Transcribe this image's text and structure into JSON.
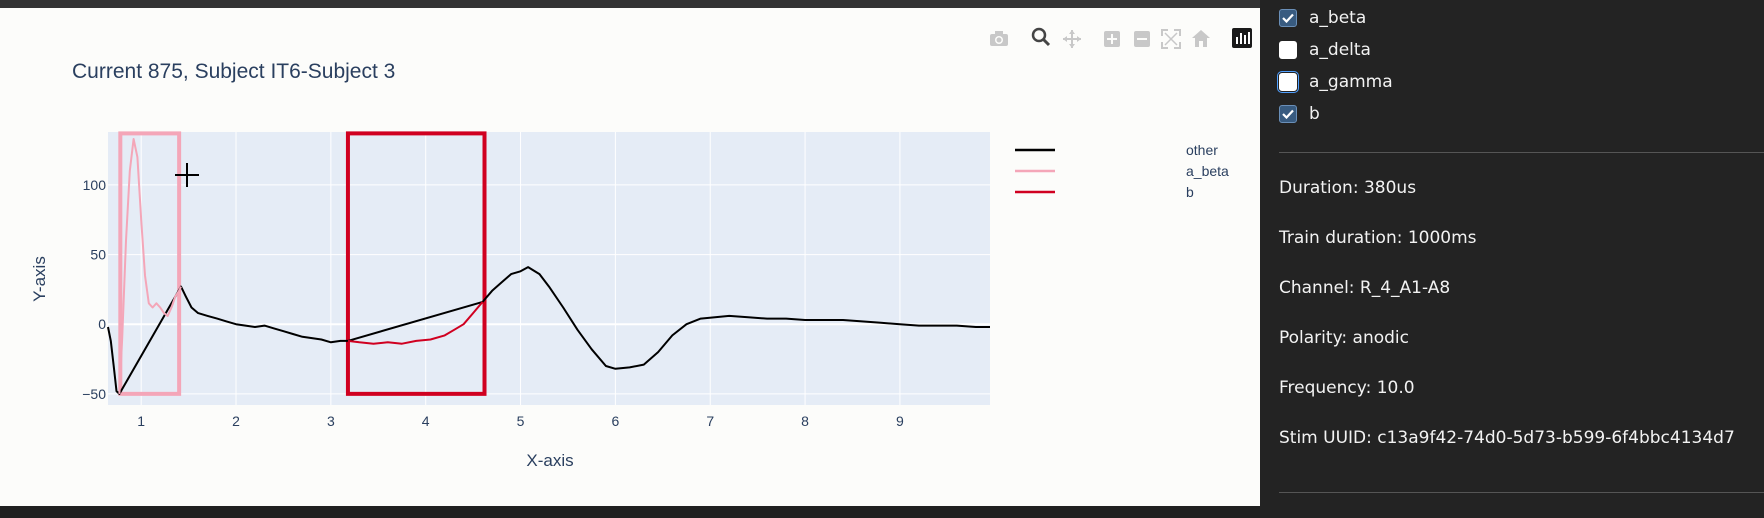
{
  "chart_data": {
    "type": "line",
    "title": "Current 875, Subject IT6-Subject 3",
    "xlabel": "X-axis",
    "ylabel": "Y-axis",
    "xlim": [
      0.65,
      9.95
    ],
    "ylim": [
      -58,
      138
    ],
    "x_ticks": [
      1,
      2,
      3,
      4,
      5,
      6,
      7,
      8,
      9
    ],
    "y_ticks": [
      -50,
      0,
      50,
      100
    ],
    "grid": true,
    "legend_position": "right",
    "series": [
      {
        "name": "other",
        "color": "#000000",
        "points": [
          [
            0.65,
            -2
          ],
          [
            0.68,
            -12
          ],
          [
            0.71,
            -30
          ],
          [
            0.74,
            -48
          ],
          [
            0.77,
            -50
          ],
          [
            1.42,
            27
          ],
          [
            1.47,
            20
          ],
          [
            1.53,
            12
          ],
          [
            1.6,
            8
          ],
          [
            1.7,
            6
          ],
          [
            1.8,
            4
          ],
          [
            1.9,
            2
          ],
          [
            2.0,
            0
          ],
          [
            2.1,
            -1
          ],
          [
            2.2,
            -2
          ],
          [
            2.3,
            -1
          ],
          [
            2.4,
            -3
          ],
          [
            2.5,
            -5
          ],
          [
            2.6,
            -7
          ],
          [
            2.7,
            -9
          ],
          [
            2.8,
            -10
          ],
          [
            2.9,
            -11
          ],
          [
            3.0,
            -13
          ],
          [
            3.1,
            -12
          ],
          [
            3.18,
            -12
          ],
          [
            4.6,
            16
          ],
          [
            4.7,
            24
          ],
          [
            4.8,
            30
          ],
          [
            4.9,
            36
          ],
          [
            5.0,
            38
          ],
          [
            5.08,
            41
          ],
          [
            5.2,
            36
          ],
          [
            5.3,
            27
          ],
          [
            5.45,
            12
          ],
          [
            5.6,
            -4
          ],
          [
            5.75,
            -18
          ],
          [
            5.9,
            -30
          ],
          [
            6.0,
            -32
          ],
          [
            6.15,
            -31
          ],
          [
            6.3,
            -29
          ],
          [
            6.45,
            -20
          ],
          [
            6.6,
            -8
          ],
          [
            6.75,
            0
          ],
          [
            6.9,
            4
          ],
          [
            7.05,
            5
          ],
          [
            7.2,
            6
          ],
          [
            7.4,
            5
          ],
          [
            7.6,
            4
          ],
          [
            7.8,
            4
          ],
          [
            8.0,
            3
          ],
          [
            8.2,
            3
          ],
          [
            8.4,
            3
          ],
          [
            8.6,
            2
          ],
          [
            8.8,
            1
          ],
          [
            9.0,
            0
          ],
          [
            9.2,
            -1
          ],
          [
            9.4,
            -1
          ],
          [
            9.6,
            -1
          ],
          [
            9.8,
            -2
          ],
          [
            9.95,
            -2
          ]
        ]
      },
      {
        "name": "a_beta",
        "color": "#f4a6b8",
        "points": [
          [
            0.77,
            -50
          ],
          [
            0.8,
            -10
          ],
          [
            0.84,
            60
          ],
          [
            0.88,
            110
          ],
          [
            0.92,
            133
          ],
          [
            0.96,
            120
          ],
          [
            1.0,
            75
          ],
          [
            1.04,
            35
          ],
          [
            1.08,
            15
          ],
          [
            1.12,
            12
          ],
          [
            1.16,
            15
          ],
          [
            1.2,
            12
          ],
          [
            1.24,
            8
          ],
          [
            1.28,
            6
          ],
          [
            1.32,
            12
          ],
          [
            1.36,
            20
          ],
          [
            1.4,
            24
          ],
          [
            1.42,
            27
          ]
        ]
      },
      {
        "name": "b",
        "color": "#d00020",
        "points": [
          [
            3.18,
            -12
          ],
          [
            3.3,
            -13
          ],
          [
            3.45,
            -14
          ],
          [
            3.6,
            -13
          ],
          [
            3.75,
            -14
          ],
          [
            3.9,
            -12
          ],
          [
            4.05,
            -11
          ],
          [
            4.2,
            -8
          ],
          [
            4.3,
            -4
          ],
          [
            4.4,
            0
          ],
          [
            4.5,
            8
          ],
          [
            4.6,
            16
          ]
        ]
      }
    ],
    "shapes": [
      {
        "label": "a_beta-region",
        "x0": 0.78,
        "x1": 1.4,
        "y0": -50,
        "y1": 137,
        "color": "#f4a6b8"
      },
      {
        "label": "b-region",
        "x0": 3.18,
        "x1": 4.62,
        "y0": -50,
        "y1": 137,
        "color": "#d00020"
      }
    ]
  },
  "modebar": {
    "icons": [
      "camera-icon",
      "zoom-icon",
      "pan-icon",
      "zoom-in-icon",
      "zoom-out-icon",
      "autoscale-icon",
      "reset-axes-icon",
      "plotly-logo-icon"
    ]
  },
  "checkboxes": [
    {
      "label": "a_beta",
      "checked": true
    },
    {
      "label": "a_delta",
      "checked": false
    },
    {
      "label": "a_gamma",
      "checked": false
    },
    {
      "label": "b",
      "checked": true
    }
  ],
  "info": {
    "duration": "Duration: 380us",
    "train_duration": "Train duration: 1000ms",
    "channel": "Channel: R_4_A1-A8",
    "polarity": "Polarity: anodic",
    "frequency": "Frequency: 10.0",
    "stim_uuid": "Stim UUID: c13a9f42-74d0-5d73-b599-6f4bbc4134d7"
  }
}
